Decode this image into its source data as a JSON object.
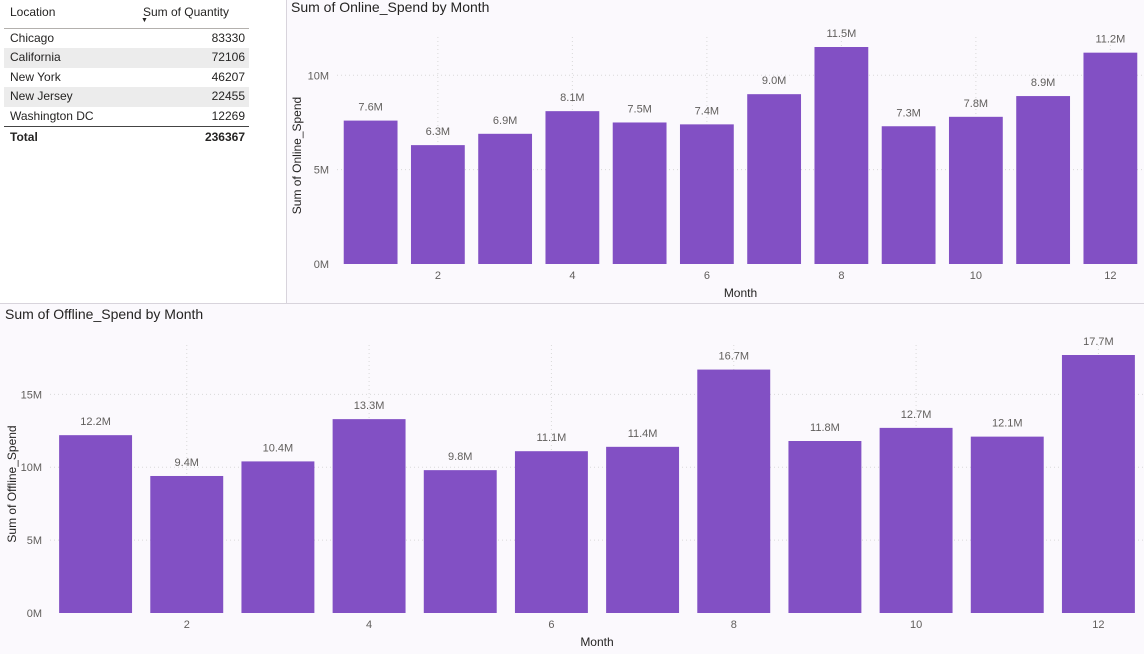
{
  "colors": {
    "bar": "#8250c4",
    "grid": "#d9d9d9",
    "text": "#252423",
    "tick": "#605e5c"
  },
  "table": {
    "headers": {
      "location": "Location",
      "quantity": "Sum of Quantity"
    },
    "sort_icon": "sort-descending-icon",
    "rows": [
      {
        "location": "Chicago",
        "quantity": "83330"
      },
      {
        "location": "California",
        "quantity": "72106"
      },
      {
        "location": "New York",
        "quantity": "46207"
      },
      {
        "location": "New Jersey",
        "quantity": "22455"
      },
      {
        "location": "Washington DC",
        "quantity": "12269"
      }
    ],
    "total": {
      "label": "Total",
      "value": "236367"
    }
  },
  "chart_data": [
    {
      "type": "bar",
      "title": "Sum of Online_Spend by Month",
      "xlabel": "Month",
      "ylabel": "Sum of Online_Spend",
      "categories": [
        1,
        2,
        3,
        4,
        5,
        6,
        7,
        8,
        9,
        10,
        11,
        12
      ],
      "x_ticks": [
        2,
        4,
        6,
        8,
        10,
        12
      ],
      "values": [
        7.6,
        6.3,
        6.9,
        8.1,
        7.5,
        7.4,
        9.0,
        11.5,
        7.3,
        7.8,
        8.9,
        11.2
      ],
      "labels": [
        "7.6M",
        "6.3M",
        "6.9M",
        "8.1M",
        "7.5M",
        "7.4M",
        "9.0M",
        "11.5M",
        "7.3M",
        "7.8M",
        "8.9M",
        "11.2M"
      ],
      "y_ticks": [
        0,
        5,
        10
      ],
      "y_tick_labels": [
        "0M",
        "5M",
        "10M"
      ],
      "ylim": [
        0,
        11.5
      ],
      "unit": "M",
      "grid": true
    },
    {
      "type": "bar",
      "title": "Sum of Offline_Spend by Month",
      "xlabel": "Month",
      "ylabel": "Sum of Offline_Spend",
      "categories": [
        1,
        2,
        3,
        4,
        5,
        6,
        7,
        8,
        9,
        10,
        11,
        12
      ],
      "x_ticks": [
        2,
        4,
        6,
        8,
        10,
        12
      ],
      "values": [
        12.2,
        9.4,
        10.4,
        13.3,
        9.8,
        11.1,
        11.4,
        16.7,
        11.8,
        12.7,
        12.1,
        17.7
      ],
      "labels": [
        "12.2M",
        "9.4M",
        "10.4M",
        "13.3M",
        "9.8M",
        "11.1M",
        "11.4M",
        "16.7M",
        "11.8M",
        "12.7M",
        "12.1M",
        "17.7M"
      ],
      "y_ticks": [
        0,
        5,
        10,
        15
      ],
      "y_tick_labels": [
        "0M",
        "5M",
        "10M",
        "15M"
      ],
      "ylim": [
        0,
        17.7
      ],
      "unit": "M",
      "grid": true
    }
  ]
}
